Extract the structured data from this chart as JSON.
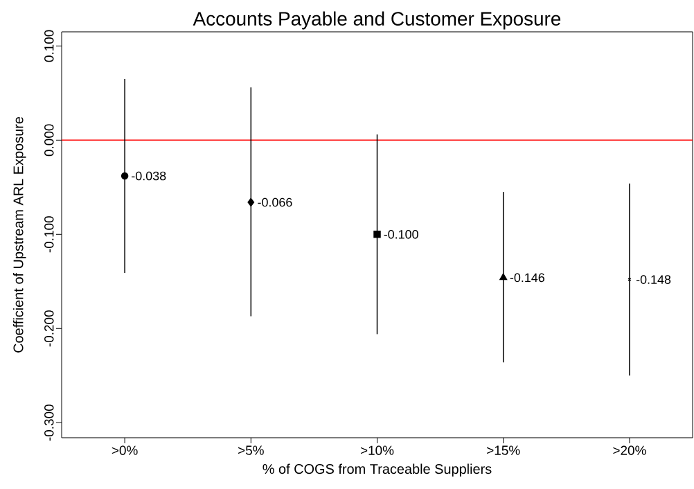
{
  "chart_data": {
    "type": "scatter",
    "title": "Accounts Payable and Customer Exposure",
    "xlabel": "% of COGS from Traceable Suppliers",
    "ylabel": "Coefficient of Upstream ARL Exposure",
    "categories": [
      ">0%",
      ">5%",
      ">10%",
      ">15%",
      ">20%"
    ],
    "series": [
      {
        "color": "#000000",
        "marker": "circle",
        "values": [
          -0.038,
          null,
          null,
          null,
          null
        ],
        "errors": [
          [
            -0.141,
            0.065
          ],
          null,
          null,
          null,
          null
        ],
        "value_labels": [
          "-0.038",
          null,
          null,
          null,
          null
        ]
      },
      {
        "color": "#000000",
        "marker": "diamond",
        "values": [
          null,
          -0.066,
          null,
          null,
          null
        ],
        "errors": [
          null,
          [
            -0.187,
            0.056
          ],
          null,
          null,
          null
        ],
        "value_labels": [
          null,
          "-0.066",
          null,
          null,
          null
        ]
      },
      {
        "color": "#000000",
        "marker": "square",
        "values": [
          null,
          null,
          -0.1,
          null,
          null
        ],
        "errors": [
          null,
          null,
          [
            -0.206,
            0.006
          ],
          null,
          null
        ],
        "value_labels": [
          null,
          null,
          "-0.100",
          null,
          null
        ]
      },
      {
        "color": "#000000",
        "marker": "triangle",
        "values": [
          null,
          null,
          null,
          -0.146,
          null
        ],
        "errors": [
          null,
          null,
          null,
          [
            -0.236,
            -0.055
          ],
          null
        ],
        "value_labels": [
          null,
          null,
          null,
          "-0.146",
          null
        ]
      },
      {
        "color": "#000000",
        "marker": "cross",
        "values": [
          null,
          null,
          null,
          null,
          -0.148
        ],
        "errors": [
          null,
          null,
          null,
          null,
          [
            -0.25,
            -0.046
          ]
        ],
        "value_labels": [
          null,
          null,
          null,
          null,
          "-0.148"
        ]
      }
    ],
    "ylim": [
      -0.316,
      0.115
    ],
    "yticks": [
      {
        "value": -0.3,
        "label": "-0.300"
      },
      {
        "value": -0.2,
        "label": "-0.200"
      },
      {
        "value": -0.1,
        "label": "-0.100"
      },
      {
        "value": 0,
        "label": "0.000"
      },
      {
        "value": 0.1,
        "label": "0.100"
      }
    ],
    "ref_lines": [
      {
        "axis": "y",
        "value": 0,
        "color": "#ff0000"
      }
    ]
  }
}
